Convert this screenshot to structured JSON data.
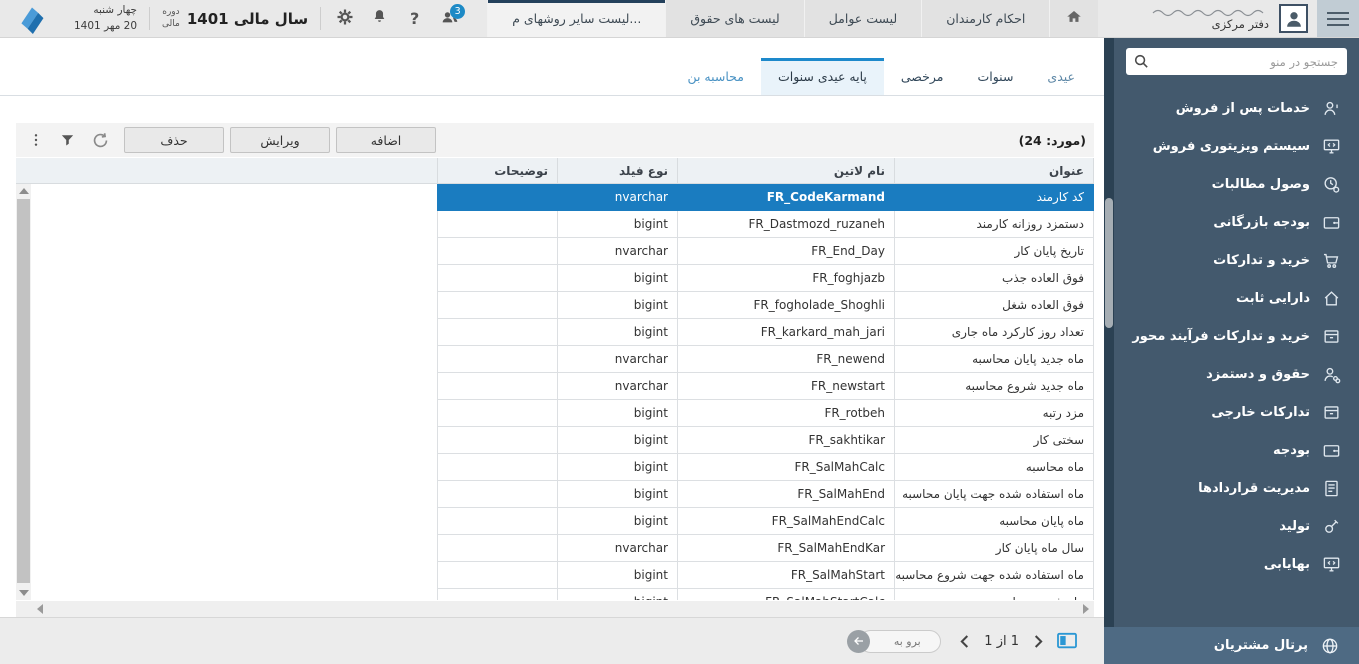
{
  "topbar": {
    "date_weekday": "چهار شنبه",
    "date_full": "20 مهر 1401",
    "fiscal_label_1": "دوره",
    "fiscal_label_2": "مالی",
    "fiscal_value": "سال مالی 1401",
    "help_glyph": "?",
    "notifications_badge": "3",
    "tabs": [
      {
        "label": "لیست سایر روشهای م...",
        "active": true
      },
      {
        "label": "لیست های حقوق"
      },
      {
        "label": "لیست عوامل"
      },
      {
        "label": "احکام کارمندان"
      }
    ],
    "user_office": "دفتر مرکزی"
  },
  "sidebar": {
    "search_placeholder": "جستجو در منو",
    "items": [
      {
        "label": "خدمات پس از فروش",
        "icon": "user-info-icon"
      },
      {
        "label": "سیستم ویزیتوری فروش",
        "icon": "monitor-code-icon"
      },
      {
        "label": "وصول مطالبات",
        "icon": "clock-money-icon"
      },
      {
        "label": "بودجه بازرگانی",
        "icon": "wallet-icon"
      },
      {
        "label": "خرید و تدارکات",
        "icon": "cart-icon"
      },
      {
        "label": "دارایی ثابت",
        "icon": "home-icon"
      },
      {
        "label": "خرید و تدارکات فرآیند محور",
        "icon": "box-icon"
      },
      {
        "label": "حقوق و دستمزد",
        "icon": "payroll-icon"
      },
      {
        "label": "تدارکات خارجی",
        "icon": "box-icon"
      },
      {
        "label": "بودجه",
        "icon": "wallet-icon"
      },
      {
        "label": "مدیریت قراردادها",
        "icon": "contract-icon"
      },
      {
        "label": "تولید",
        "icon": "production-icon"
      },
      {
        "label": "بهایابی",
        "icon": "monitor-code-icon"
      }
    ],
    "footer_item": {
      "label": "پرتال مشتریان",
      "icon": "globe-icon"
    }
  },
  "subtabs": [
    {
      "label": "عیدی",
      "variant": "muted"
    },
    {
      "label": "سنوات",
      "variant": "dark"
    },
    {
      "label": "مرخصی",
      "variant": "dark"
    },
    {
      "label": "پایه عیدی سنوات",
      "active": true
    },
    {
      "label": "محاسبه بن",
      "variant": "blue"
    }
  ],
  "toolbar": {
    "count_label": "(مورد: 24)",
    "add_label": "اضافه",
    "edit_label": "ویرایش",
    "delete_label": "حذف"
  },
  "table": {
    "columns": [
      "عنوان",
      "نام لاتین",
      "نوع فیلد",
      "توضیحات"
    ],
    "rows": [
      {
        "title": "کد کارمند",
        "latin": "FR_CodeKarmand",
        "type": "nvarchar",
        "desc": "",
        "selected": true
      },
      {
        "title": "دستمزد روزانه کارمند",
        "latin": "FR_Dastmozd_ruzaneh",
        "type": "bigint",
        "desc": ""
      },
      {
        "title": "تاریخ پایان کار",
        "latin": "FR_End_Day",
        "type": "nvarchar",
        "desc": ""
      },
      {
        "title": "فوق العاده جذب",
        "latin": "FR_foghjazb",
        "type": "bigint",
        "desc": ""
      },
      {
        "title": "فوق العاده شغل",
        "latin": "FR_fogholade_Shoghli",
        "type": "bigint",
        "desc": ""
      },
      {
        "title": "تعداد روز کارکرد ماه جاری",
        "latin": "FR_karkard_mah_jari",
        "type": "bigint",
        "desc": ""
      },
      {
        "title": "ماه جدید پایان محاسبه",
        "latin": "FR_newend",
        "type": "nvarchar",
        "desc": ""
      },
      {
        "title": "ماه جدید شروع محاسبه",
        "latin": "FR_newstart",
        "type": "nvarchar",
        "desc": ""
      },
      {
        "title": "مزد رتبه",
        "latin": "FR_rotbeh",
        "type": "bigint",
        "desc": ""
      },
      {
        "title": "سختی کار",
        "latin": "FR_sakhtikar",
        "type": "bigint",
        "desc": ""
      },
      {
        "title": "ماه محاسبه",
        "latin": "FR_SalMahCalc",
        "type": "bigint",
        "desc": ""
      },
      {
        "title": "ماه استفاده شده جهت پایان محاسبه",
        "latin": "FR_SalMahEnd",
        "type": "bigint",
        "desc": ""
      },
      {
        "title": "ماه پایان محاسبه",
        "latin": "FR_SalMahEndCalc",
        "type": "bigint",
        "desc": ""
      },
      {
        "title": "سال ماه پایان کار",
        "latin": "FR_SalMahEndKar",
        "type": "nvarchar",
        "desc": ""
      },
      {
        "title": "ماه استفاده شده جهت شروع محاسبه",
        "latin": "FR_SalMahStart",
        "type": "bigint",
        "desc": ""
      },
      {
        "title": "ماه شروع محاسبه",
        "latin": "FR_SalMahStartCalc",
        "type": "bigint",
        "desc": ""
      }
    ]
  },
  "pagination": {
    "page_info": "1 از 1",
    "goto_label": "برو به"
  },
  "colors": {
    "selected_row": "#1a7cc0",
    "sidebar_bg": "#43596d",
    "active_subtab_border": "#1d89cb",
    "active_toptab_border": "#24415c",
    "badge_blue": "#1d8ac6"
  }
}
